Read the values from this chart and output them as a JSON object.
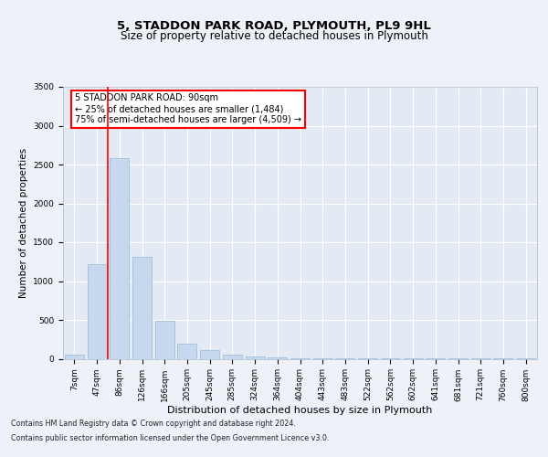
{
  "title": "5, STADDON PARK ROAD, PLYMOUTH, PL9 9HL",
  "subtitle": "Size of property relative to detached houses in Plymouth",
  "xlabel": "Distribution of detached houses by size in Plymouth",
  "ylabel": "Number of detached properties",
  "categories": [
    "7sqm",
    "47sqm",
    "86sqm",
    "126sqm",
    "166sqm",
    "205sqm",
    "245sqm",
    "285sqm",
    "324sqm",
    "364sqm",
    "404sqm",
    "443sqm",
    "483sqm",
    "522sqm",
    "562sqm",
    "602sqm",
    "641sqm",
    "681sqm",
    "721sqm",
    "760sqm",
    "800sqm"
  ],
  "values": [
    50,
    1220,
    2580,
    1310,
    490,
    200,
    110,
    50,
    35,
    20,
    10,
    5,
    5,
    3,
    2,
    2,
    1,
    1,
    1,
    1,
    1
  ],
  "bar_color": "#c5d8ed",
  "bar_edgecolor": "#9ab8d4",
  "redline_x": 1.5,
  "redline_label": "5 STADDON PARK ROAD: 90sqm",
  "annotation_line1": "← 25% of detached houses are smaller (1,484)",
  "annotation_line2": "75% of semi-detached houses are larger (4,509) →",
  "ylim": [
    0,
    3500
  ],
  "yticks": [
    0,
    500,
    1000,
    1500,
    2000,
    2500,
    3000,
    3500
  ],
  "footer1": "Contains HM Land Registry data © Crown copyright and database right 2024.",
  "footer2": "Contains public sector information licensed under the Open Government Licence v3.0.",
  "background_color": "#eef2f8",
  "plot_background": "#e4eaf4",
  "grid_color": "#ffffff",
  "title_fontsize": 9.5,
  "subtitle_fontsize": 8.5,
  "xlabel_fontsize": 8,
  "ylabel_fontsize": 7.5,
  "tick_fontsize": 6.5,
  "annot_fontsize": 7,
  "footer_fontsize": 5.8
}
